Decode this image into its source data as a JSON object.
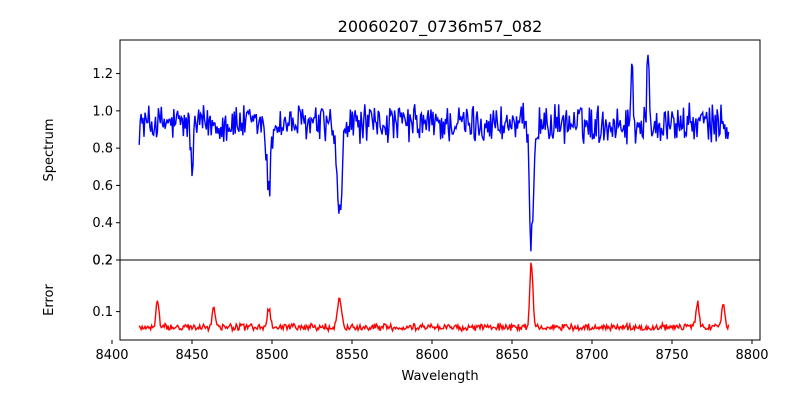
{
  "chart_data": [
    {
      "type": "line",
      "title": "20060207_0736m57_082",
      "xlabel": "",
      "ylabel": "Spectrum",
      "xlim": [
        8405,
        8805
      ],
      "ylim": [
        0.2,
        1.38
      ],
      "yticks": [
        0.2,
        0.4,
        0.6,
        0.8,
        1.0,
        1.2
      ],
      "ytick_labels": [
        "0.2",
        "0.4",
        "0.6",
        "0.8",
        "1.0",
        "1.2"
      ],
      "grid": false,
      "series": [
        {
          "color": "#0000ff",
          "x_start": 8417,
          "x_end": 8786,
          "baseline": 0.93,
          "noise": 0.09,
          "features": [
            {
              "center": 8498.0,
              "depth": 0.38,
              "width": 1.2
            },
            {
              "center": 8542.1,
              "depth": 0.52,
              "width": 1.6
            },
            {
              "center": 8662.1,
              "depth": 0.6,
              "width": 1.3
            },
            {
              "center": 8450.0,
              "depth": 0.25,
              "width": 0.8
            },
            {
              "center": 8725.0,
              "depth": -0.32,
              "width": 0.6
            },
            {
              "center": 8735.0,
              "depth": -0.38,
              "width": 0.6
            }
          ]
        }
      ]
    },
    {
      "type": "line",
      "title": "",
      "xlabel": "Wavelength",
      "ylabel": "Error",
      "xlim": [
        8405,
        8805
      ],
      "ylim": [
        0.045,
        0.2
      ],
      "yticks": [
        0.1,
        0.2
      ],
      "ytick_labels": [
        "0.1",
        "0.2"
      ],
      "xticks": [
        8400,
        8450,
        8500,
        8550,
        8600,
        8650,
        8700,
        8750,
        8800
      ],
      "xtick_labels": [
        "8400",
        "8450",
        "8500",
        "8550",
        "8600",
        "8650",
        "8700",
        "8750",
        "8800"
      ],
      "grid": false,
      "series": [
        {
          "color": "#ff0000",
          "x_start": 8417,
          "x_end": 8786,
          "baseline": 0.07,
          "noise": 0.006,
          "features": [
            {
              "center": 8428.5,
              "value": 0.122,
              "width": 0.9
            },
            {
              "center": 8463.5,
              "value": 0.108,
              "width": 0.9
            },
            {
              "center": 8498.0,
              "value": 0.108,
              "width": 1.0
            },
            {
              "center": 8542.1,
              "value": 0.126,
              "width": 1.2
            },
            {
              "center": 8662.1,
              "value": 0.197,
              "width": 0.9
            },
            {
              "center": 8766.0,
              "value": 0.118,
              "width": 1.0
            },
            {
              "center": 8782.0,
              "value": 0.118,
              "width": 1.0
            }
          ]
        }
      ]
    }
  ]
}
